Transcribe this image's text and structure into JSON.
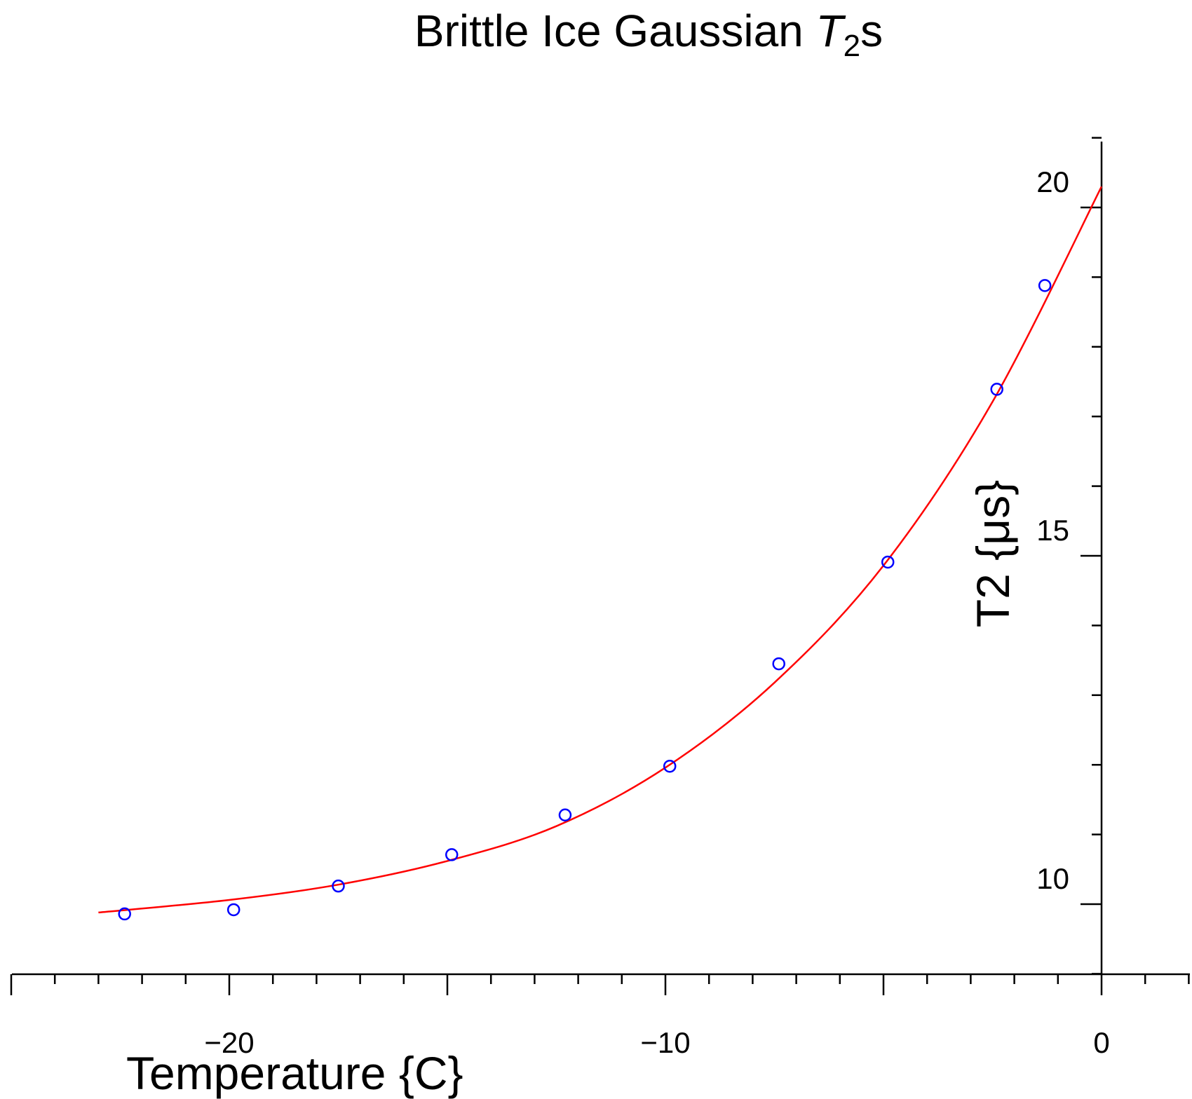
{
  "chart_data": {
    "type": "scatter",
    "title": "Brittle Ice Gaussian T2s",
    "title_parts": {
      "prefix": "Brittle Ice Gaussian",
      "symbol": "T",
      "subscript": "2",
      "suffix": "s"
    },
    "xlabel": "Temperature {C}",
    "ylabel": "T2 {μs}",
    "xlim": [
      -25,
      2
    ],
    "ylim": [
      9,
      21
    ],
    "x_ticks": [
      {
        "value": -20,
        "label": "−20"
      },
      {
        "value": -10,
        "label": "−10"
      },
      {
        "value": 0,
        "label": "0"
      }
    ],
    "y_ticks": [
      {
        "value": 10,
        "label": "10"
      },
      {
        "value": 15,
        "label": "15"
      },
      {
        "value": 20,
        "label": "20"
      }
    ],
    "x_minor_step": 1,
    "y_minor_step": 1,
    "grid": false,
    "series": [
      {
        "kind": "points",
        "marker": "open-circle",
        "color": "#0000ff",
        "x": [
          -22.4,
          -19.9,
          -17.5,
          -14.9,
          -12.3,
          -9.9,
          -7.4,
          -4.9,
          -2.4,
          -1.3
        ],
        "y": [
          9.86,
          9.92,
          10.26,
          10.71,
          11.28,
          11.98,
          13.45,
          14.91,
          17.39,
          18.88
        ]
      },
      {
        "kind": "fit-curve",
        "color": "#ff0000",
        "x": [
          -23,
          -20,
          -17.5,
          -15,
          -12.5,
          -10,
          -7.5,
          -5,
          -2.5,
          0
        ],
        "y": [
          9.88,
          10.06,
          10.28,
          10.62,
          11.12,
          11.96,
          13.18,
          14.86,
          17.21,
          20.3
        ]
      }
    ]
  }
}
